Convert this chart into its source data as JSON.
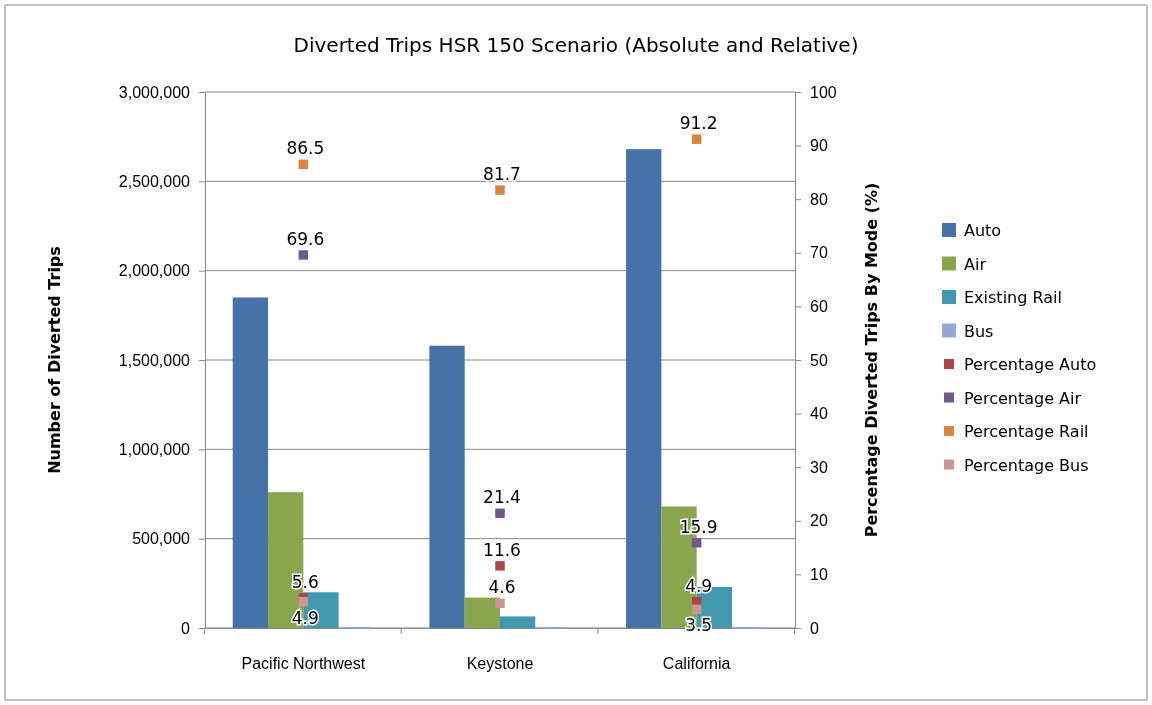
{
  "chart_data": {
    "type": "bar",
    "title": "Diverted Trips HSR 150 Scenario (Absolute and Relative)",
    "ylabel": "Number of Diverted Trips",
    "y2label": "Percentage Diverted Trips By Mode (%)",
    "categories": [
      "Pacific Northwest",
      "Keystone",
      "California"
    ],
    "series": [
      {
        "name": "Auto",
        "color": "#4572a7",
        "values": [
          1850000,
          1580000,
          2680000
        ]
      },
      {
        "name": "Air",
        "color": "#89a54e",
        "values": [
          760000,
          170000,
          680000
        ]
      },
      {
        "name": "Existing Rail",
        "color": "#4198af",
        "values": [
          200000,
          65000,
          230000
        ]
      },
      {
        "name": "Bus",
        "color": "#93a9d4",
        "values": [
          5000,
          5000,
          5000
        ]
      },
      {
        "name": "Percentage Auto",
        "type": "scatter",
        "axis": "y2",
        "color": "#aa4643",
        "values": [
          5.6,
          11.6,
          4.9
        ],
        "value_labels": [
          "5.6",
          "11.6",
          "4.9"
        ]
      },
      {
        "name": "Percentage Air",
        "type": "scatter",
        "axis": "y2",
        "color": "#71588f",
        "values": [
          69.6,
          21.4,
          15.9
        ],
        "value_labels": [
          "69.6",
          "21.4",
          "15.9"
        ]
      },
      {
        "name": "Percentage Rail",
        "type": "scatter",
        "axis": "y2",
        "color": "#db843d",
        "values": [
          86.5,
          81.7,
          91.2
        ],
        "value_labels": [
          "86.5",
          "81.7",
          "91.2"
        ]
      },
      {
        "name": "Percentage Bus",
        "type": "scatter",
        "axis": "y2",
        "color": "#d09493",
        "values": [
          4.9,
          4.6,
          3.5
        ],
        "value_labels": [
          "4.9",
          "4.6",
          "3.5"
        ]
      }
    ],
    "ylim": [
      0,
      3000000
    ],
    "yticks": [
      {
        "value": 0,
        "label": "0"
      },
      {
        "value": 500000,
        "label": "500,000"
      },
      {
        "value": 1000000,
        "label": "1,000,000"
      },
      {
        "value": 1500000,
        "label": "1,500,000"
      },
      {
        "value": 2000000,
        "label": "2,000,000"
      },
      {
        "value": 2500000,
        "label": "2,500,000"
      },
      {
        "value": 3000000,
        "label": "3,000,000"
      }
    ],
    "y2lim": [
      0,
      100
    ],
    "y2ticks": [
      0,
      10,
      20,
      30,
      40,
      50,
      60,
      70,
      80,
      90,
      100
    ],
    "grid": "y",
    "legend": "right",
    "marker": "square"
  }
}
